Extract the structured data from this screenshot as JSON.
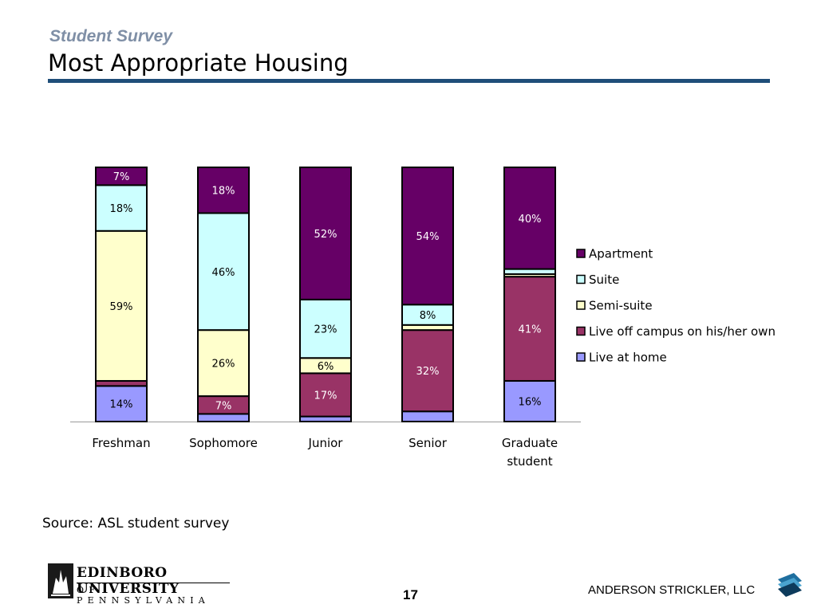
{
  "header": {
    "kicker": "Student Survey",
    "title": "Most Appropriate Housing"
  },
  "footer": {
    "source": "Source: ASL student survey",
    "university_name": "EDINBORO UNIVERSITY",
    "university_state": "OF PENNSYLVANIA",
    "page_number": "17",
    "firm_name": "ANDERSON STRICKLER, LLC"
  },
  "chart_data": {
    "type": "bar",
    "stacked": true,
    "normalized_100": true,
    "categories": [
      [
        "Freshman"
      ],
      [
        "Sophomore"
      ],
      [
        "Junior"
      ],
      [
        "Senior"
      ],
      [
        "Graduate",
        "student"
      ]
    ],
    "series": [
      {
        "name": "Live at home",
        "color": "#9999ff",
        "values": [
          14,
          3,
          2,
          4,
          16
        ],
        "labels": [
          "14%",
          "",
          "",
          "",
          "16%"
        ],
        "label_color": "#000000"
      },
      {
        "name": "Live off campus on his/her own",
        "color": "#993366",
        "values": [
          2,
          7,
          17,
          32,
          41
        ],
        "labels": [
          "",
          "7%",
          "17%",
          "32%",
          "41%"
        ],
        "label_color": "#ffffff"
      },
      {
        "name": "Semi-suite",
        "color": "#ffffcc",
        "values": [
          59,
          26,
          6,
          2,
          1
        ],
        "labels": [
          "59%",
          "26%",
          "6%",
          "",
          ""
        ],
        "label_color": "#000000"
      },
      {
        "name": "Suite",
        "color": "#ccffff",
        "values": [
          18,
          46,
          23,
          8,
          2
        ],
        "labels": [
          "18%",
          "46%",
          "23%",
          "8%",
          ""
        ],
        "label_color": "#000000"
      },
      {
        "name": "Apartment",
        "color": "#660066",
        "values": [
          7,
          18,
          52,
          54,
          40
        ],
        "labels": [
          "7%",
          "18%",
          "52%",
          "54%",
          "40%"
        ],
        "label_color": "#ffffff"
      }
    ],
    "legend_order": [
      "Apartment",
      "Suite",
      "Semi-suite",
      "Live off campus on his/her own",
      "Live at home"
    ],
    "legend_position": "right",
    "ylim": [
      0,
      100
    ],
    "grid": false
  }
}
